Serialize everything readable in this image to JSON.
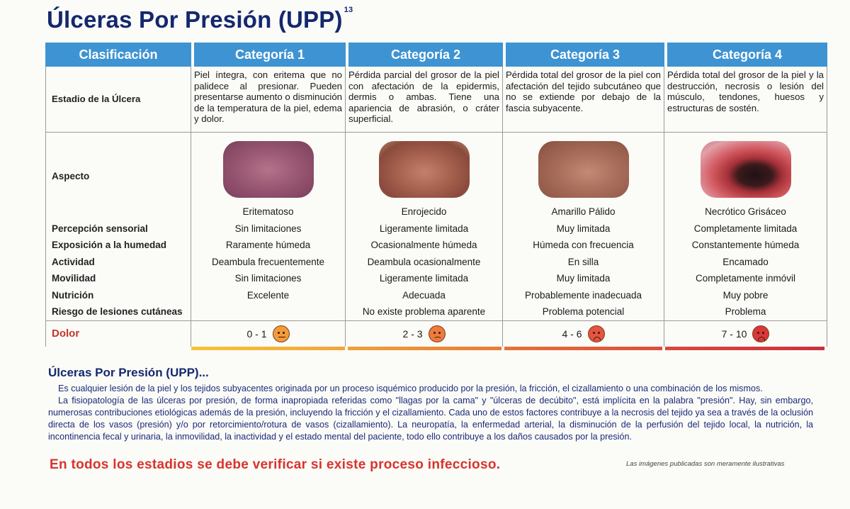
{
  "title": "Úlceras Por Presión (UPP)",
  "title_superscript": "13",
  "headers": [
    "Clasificación",
    "Categoría 1",
    "Categoría 2",
    "Categoría 3",
    "Categoría 4"
  ],
  "stage": {
    "label": "Estadio de la Úlcera",
    "values": [
      "Piel íntegra, con eritema que no palidece al presionar. Pueden presentarse aumento o disminución de la temperatura de la piel, edema y dolor.",
      "Pérdida parcial del grosor de la piel con afectación de la epidermis, dermis o ambas. Tiene una apariencia de abrasión, o cráter superficial.",
      "Pérdida total del grosor de la piel con afectación del tejido subcutáneo que no se extiende por debajo de la fascia subyacente.",
      "Pérdida total del grosor de la piel y la destrucción, necrosis o lesión del músculo, tendones, huesos y estructuras de sostén."
    ]
  },
  "aspect": {
    "label": "Aspecto",
    "values": [
      "Eritematoso",
      "Enrojecido",
      "Amarillo Pálido",
      "Necrótico Grisáceo"
    ]
  },
  "rows": [
    {
      "label": "Percepción sensorial",
      "values": [
        "Sin limitaciones",
        "Ligeramente limitada",
        "Muy limitada",
        "Completamente limitada"
      ]
    },
    {
      "label": "Exposición a la humedad",
      "values": [
        "Raramente húmeda",
        "Ocasionalmente húmeda",
        "Húmeda con frecuencia",
        "Constantemente húmeda"
      ]
    },
    {
      "label": "Actividad",
      "values": [
        "Deambula frecuentemente",
        "Deambula ocasionalmente",
        "En silla",
        "Encamado"
      ]
    },
    {
      "label": "Movilidad",
      "values": [
        "Sin limitaciones",
        "Ligeramente limitada",
        "Muy limitada",
        "Completamente inmóvil"
      ]
    },
    {
      "label": "Nutrición",
      "values": [
        "Excelente",
        "Adecuada",
        "Probablemente inadecuada",
        "Muy pobre"
      ]
    },
    {
      "label": "Riesgo de lesiones cutáneas",
      "values": [
        "",
        "No existe problema aparente",
        "Problema potencial",
        "Problema"
      ]
    }
  ],
  "pain": {
    "label": "Dolor",
    "values": [
      "0 - 1",
      "2 - 3",
      "4 - 6",
      "7 - 10"
    ]
  },
  "section": {
    "title": "Úlceras Por Presión (UPP)...",
    "paragraph1": "Es cualquier lesión de la piel y los tejidos subyacentes originada por un proceso isquémico producido por la presión, la fricción, el cizallamiento o una combinación de los mismos.",
    "paragraph2": "La fisiopatología de las úlceras por presión, de forma inapropiada referidas como \"llagas por la cama\" y \"úlceras de decúbito\", está implícita en la palabra \"presión\". Hay, sin embargo, numerosas contribuciones etiológicas además de la presión, incluyendo la fricción y el cizallamiento. Cada uno de estos factores contribuye a la necrosis del tejido ya sea a través de la oclusión directa de los vasos (presión) y/o por retorcimiento/rotura de vasos (cizallamiento). La neuropatía, la enfermedad arterial, la disminución de la perfusión del tejido local, la nutrición, la incontinencia fecal y urinaria, la inmovilidad, la inactividad y el estado mental del paciente, todo ello contribuye a los daños causados por la presión."
  },
  "alert": "En todos los estadios se debe verificar si existe proceso infeccioso.",
  "disclaimer": "Las imágenes publicadas son meramente ilustrativas",
  "colors": {
    "header_blue": "#3e93d2",
    "title_navy": "#14286e",
    "alert_red": "#d8332b"
  }
}
